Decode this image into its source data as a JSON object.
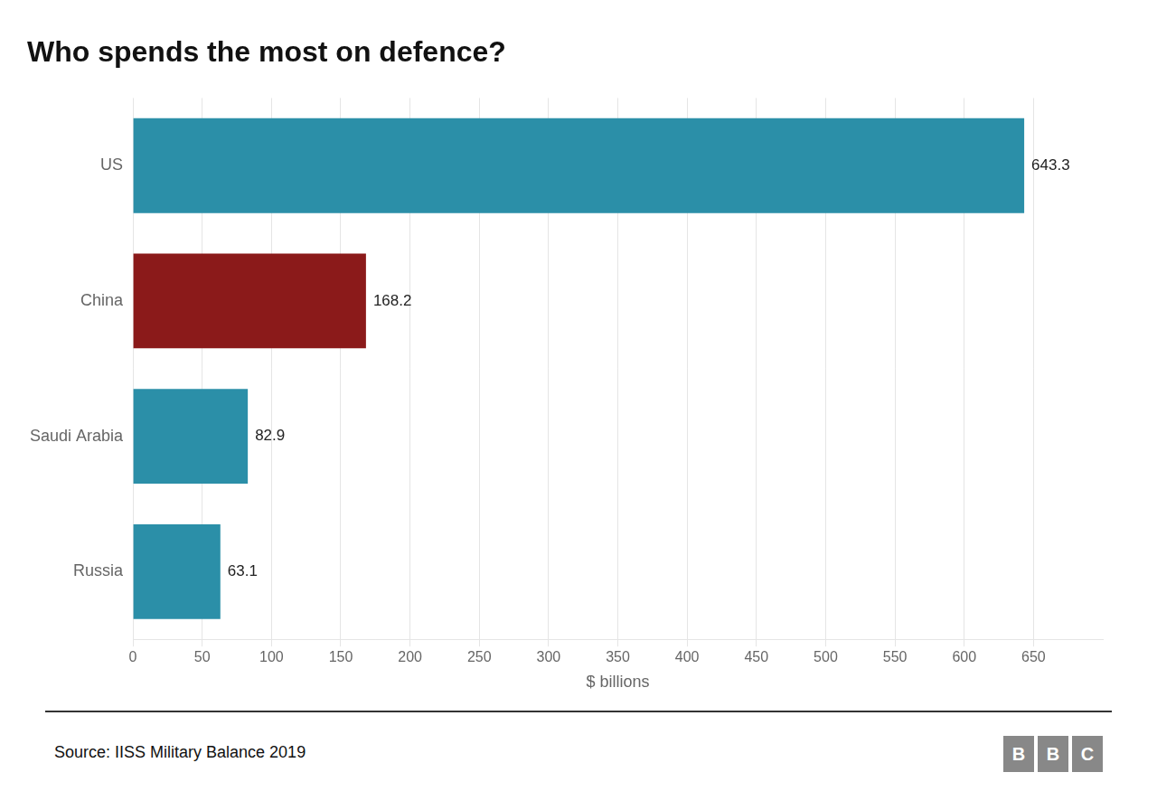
{
  "chart_data": {
    "type": "bar",
    "orientation": "horizontal",
    "title": "Who spends the most on defence?",
    "categories": [
      "US",
      "China",
      "Saudi Arabia",
      "Russia"
    ],
    "values": [
      643.3,
      168.2,
      82.9,
      63.1
    ],
    "colors": [
      "#2b8fa8",
      "#8b1a1a",
      "#2b8fa8",
      "#2b8fa8"
    ],
    "xlabel": "$ billions",
    "xlim": [
      0,
      700
    ],
    "xticks": [
      0,
      50,
      100,
      150,
      200,
      250,
      300,
      350,
      400,
      450,
      500,
      550,
      600,
      650
    ],
    "grid": true,
    "data_labels": true,
    "annotations": [
      "Source: IISS Military Balance 2019",
      "BBC"
    ]
  }
}
